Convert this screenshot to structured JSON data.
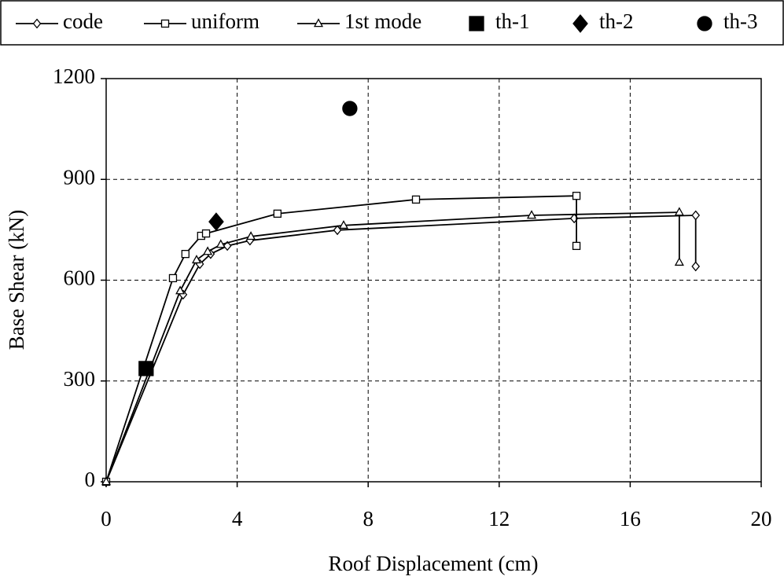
{
  "chart_data": {
    "type": "line",
    "xlabel": "Roof Displacement (cm)",
    "ylabel": "Base Shear (kN)",
    "xlim": [
      0,
      20
    ],
    "xticks": [
      0,
      4,
      8,
      12,
      16,
      20
    ],
    "ylim": [
      0,
      1200
    ],
    "yticks": [
      0,
      300,
      600,
      900,
      1200
    ],
    "grid": true,
    "legend": "top",
    "series": [
      {
        "name": "code",
        "color": "#000000",
        "marker": "diamond",
        "filled": false,
        "line": true,
        "x": [
          0,
          2.35,
          2.86,
          3.19,
          3.7,
          4.39,
          7.06,
          14.29,
          18.0,
          18.0
        ],
        "values": [
          0,
          557,
          648,
          678,
          702,
          718,
          749,
          784,
          793,
          641
        ]
      },
      {
        "name": "uniform",
        "color": "#000000",
        "marker": "square",
        "filled": false,
        "line": true,
        "x": [
          0,
          2.04,
          2.42,
          2.9,
          3.05,
          5.23,
          9.46,
          14.36,
          14.36
        ],
        "values": [
          0,
          606,
          678,
          732,
          739,
          798,
          840,
          851,
          702
        ]
      },
      {
        "name": "1st mode",
        "color": "#000000",
        "marker": "triangle",
        "filled": false,
        "line": true,
        "x": [
          0,
          2.26,
          2.76,
          3.1,
          3.5,
          4.42,
          7.25,
          12.99,
          17.5,
          17.5
        ],
        "values": [
          0,
          568,
          660,
          685,
          706,
          730,
          763,
          793,
          802,
          653
        ]
      },
      {
        "name": "th-1",
        "color": "#000000",
        "marker": "square",
        "filled": true,
        "line": false,
        "x": [
          1.22
        ],
        "values": [
          337
        ]
      },
      {
        "name": "th-2",
        "color": "#000000",
        "marker": "diamond",
        "filled": true,
        "line": false,
        "x": [
          3.36
        ],
        "values": [
          774
        ]
      },
      {
        "name": "th-3",
        "color": "#000000",
        "marker": "circle",
        "filled": true,
        "line": false,
        "x": [
          7.44
        ],
        "values": [
          1111
        ]
      }
    ]
  }
}
